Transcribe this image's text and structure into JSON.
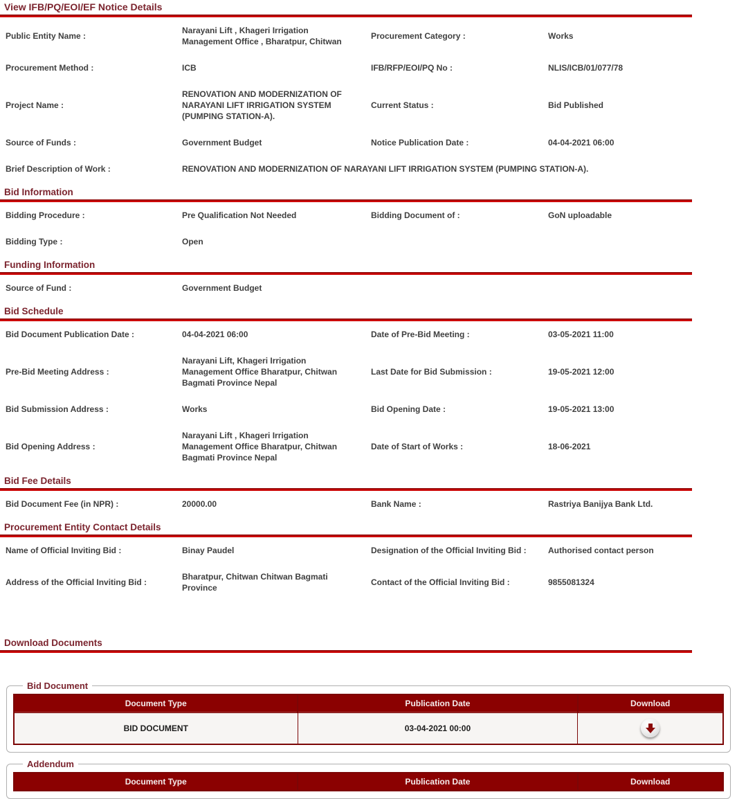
{
  "header": {
    "title": "View IFB/PQ/EOI/EF Notice Details"
  },
  "colors": {
    "heading_maroon": "#7b242e",
    "divider_red": "#d90a0a",
    "table_header_bg": "#8b0101",
    "table_header_text": "#ffffff",
    "table_row_bg": "#f7f5f3",
    "download_arrow": "#8b0b0b"
  },
  "notice": {
    "rows": [
      {
        "l1": "Public Entity Name :",
        "v1": "Narayani Lift , Khageri Irrigation Management Office , Bharatpur, Chitwan",
        "l2": "Procurement Category :",
        "v2": "Works"
      },
      {
        "l1": "Procurement Method :",
        "v1": "ICB",
        "l2": "IFB/RFP/EOI/PQ No :",
        "v2": "NLIS/ICB/01/077/78"
      },
      {
        "l1": "Project Name :",
        "v1": "RENOVATION AND MODERNIZATION OF NARAYANI LIFT IRRIGATION SYSTEM (PUMPING STATION-A).",
        "l2": "Current Status :",
        "v2": "Bid Published"
      },
      {
        "l1": "Source of Funds :",
        "v1": "Government Budget",
        "l2": "Notice Publication Date :",
        "v2": "04-04-2021 06:00"
      },
      {
        "l1": "Brief Description of Work :",
        "v1": "RENOVATION AND MODERNIZATION OF NARAYANI LIFT IRRIGATION SYSTEM (PUMPING STATION-A).",
        "l2": "",
        "v2": ""
      }
    ]
  },
  "bid_information": {
    "title": "Bid Information",
    "rows": [
      {
        "l1": "Bidding Procedure :",
        "v1": "Pre Qualification Not Needed",
        "l2": "Bidding Document of :",
        "v2": "GoN uploadable"
      },
      {
        "l1": "Bidding Type :",
        "v1": "Open",
        "l2": "",
        "v2": ""
      }
    ]
  },
  "funding_information": {
    "title": "Funding Information",
    "rows": [
      {
        "l1": "Source of Fund :",
        "v1": "Government Budget",
        "l2": "",
        "v2": ""
      }
    ]
  },
  "bid_schedule": {
    "title": "Bid Schedule",
    "rows": [
      {
        "l1": "Bid Document Publication Date :",
        "v1": "04-04-2021 06:00",
        "l2": "Date of Pre-Bid Meeting :",
        "v2": "03-05-2021 11:00"
      },
      {
        "l1": "Pre-Bid Meeting Address :",
        "v1": "Narayani Lift, Khageri Irrigation Management Office Bharatpur, Chitwan Bagmati Province Nepal",
        "l2": "Last Date for Bid Submission :",
        "v2": "19-05-2021 12:00"
      },
      {
        "l1": "Bid Submission Address :",
        "v1": "Works",
        "l2": "Bid Opening Date :",
        "v2": "19-05-2021 13:00"
      },
      {
        "l1": "Bid Opening Address :",
        "v1": "Narayani Lift , Khageri Irrigation Management Office Bharatpur, Chitwan Bagmati Province Nepal",
        "l2": "Date of Start of Works :",
        "v2": "18-06-2021"
      }
    ]
  },
  "bid_fee": {
    "title": "Bid Fee Details",
    "rows": [
      {
        "l1": "Bid Document Fee (in NPR) :",
        "v1": "20000.00",
        "l2": "Bank Name :",
        "v2": "Rastriya Banijya Bank Ltd."
      }
    ]
  },
  "contact": {
    "title": "Procurement Entity Contact Details",
    "rows": [
      {
        "l1": "Name of Official Inviting Bid :",
        "v1": "Binay Paudel",
        "l2": "Designation of the Official Inviting Bid :",
        "v2": "Authorised contact person"
      },
      {
        "l1": "Address of the Official Inviting Bid :",
        "v1": "Bharatpur, Chitwan Chitwan Bagmati Province",
        "l2": "Contact of the Official Inviting Bid :",
        "v2": "9855081324"
      }
    ]
  },
  "download_documents": {
    "title": "Download Documents"
  },
  "bid_document_box": {
    "legend": "Bid Document",
    "columns": [
      "Document Type",
      "Publication Date",
      "Download"
    ],
    "rows": [
      {
        "type": "BID DOCUMENT",
        "date": "03-04-2021 00:00",
        "icon": "download-arrow-icon"
      }
    ]
  },
  "addendum_box": {
    "legend": "Addendum",
    "columns": [
      "Document Type",
      "Publication Date",
      "Download"
    ],
    "rows": []
  }
}
